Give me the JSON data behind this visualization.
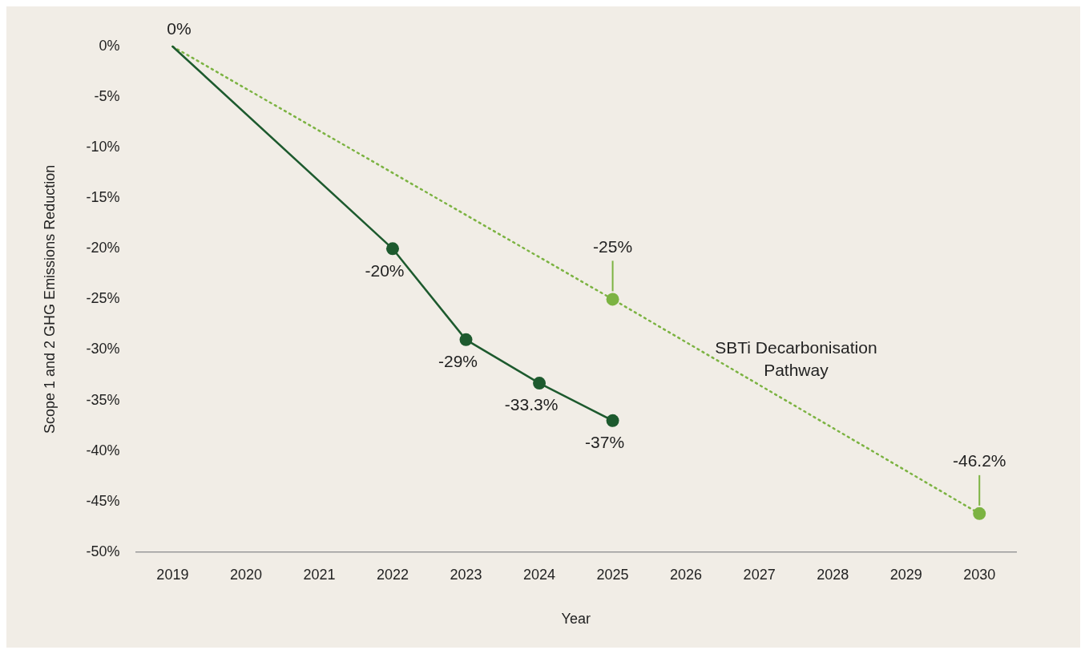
{
  "chart_data": {
    "type": "line",
    "xlabel": "Year",
    "ylabel": "Scope 1 and 2 GHG Emissions Reduction",
    "categories": [
      "2019",
      "2020",
      "2021",
      "2022",
      "2023",
      "2024",
      "2025",
      "2026",
      "2027",
      "2028",
      "2029",
      "2030"
    ],
    "series": [
      {
        "color": "#1d5a2e",
        "line_style": "solid",
        "values": [
          0,
          null,
          null,
          -20,
          -29,
          -33.3,
          -37,
          null,
          null,
          null,
          null,
          null
        ],
        "value_labels": [
          null,
          null,
          null,
          "-20%",
          "-29%",
          "-33.3%",
          "-37%",
          null,
          null,
          null,
          null,
          null
        ]
      },
      {
        "name": "SBTi Decarbonisation Pathway",
        "color": "#7cb342",
        "line_style": "dotted",
        "values": [
          0,
          null,
          null,
          null,
          null,
          null,
          -25,
          null,
          null,
          null,
          null,
          -46.2
        ],
        "value_labels": [
          null,
          null,
          null,
          null,
          null,
          null,
          "-25%",
          null,
          null,
          null,
          null,
          "-46.2%"
        ]
      }
    ],
    "marker": "circle",
    "ylim": [
      -50,
      0
    ],
    "yticks": [
      {
        "value": -50,
        "label": "-50%"
      },
      {
        "value": -45,
        "label": "-45%"
      },
      {
        "value": -40,
        "label": "-40%"
      },
      {
        "value": -35,
        "label": "-35%"
      },
      {
        "value": -30,
        "label": "-30%"
      },
      {
        "value": -25,
        "label": "-25%"
      },
      {
        "value": -20,
        "label": "-20%"
      },
      {
        "value": -15,
        "label": "-15%"
      },
      {
        "value": -10,
        "label": "-10%"
      },
      {
        "value": -5,
        "label": "-5%"
      },
      {
        "value": 0,
        "label": "0%"
      }
    ],
    "grid": false,
    "legend": false,
    "annotations": [
      {
        "text": "0%",
        "x": "2019",
        "y": 0
      }
    ]
  }
}
